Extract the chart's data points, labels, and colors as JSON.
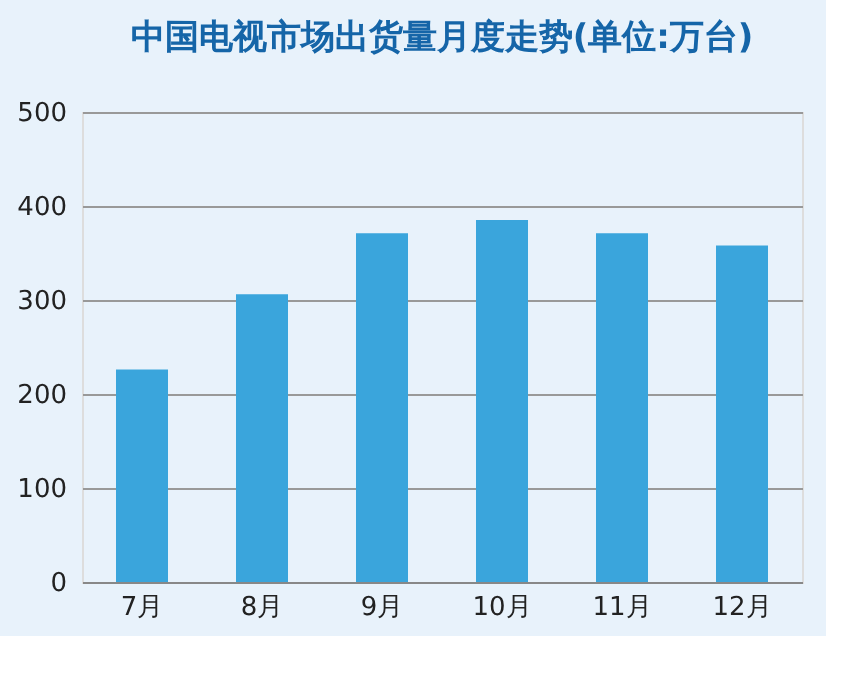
{
  "chart_data": {
    "type": "bar",
    "title": "中国电视市场出货量月度走势(单位:万台)",
    "categories": [
      "7月",
      "8月",
      "9月",
      "10月",
      "11月",
      "12月"
    ],
    "values": [
      226,
      306,
      371,
      385,
      371,
      358
    ],
    "color": "#3aa5dc",
    "ylim": [
      0,
      500
    ],
    "yticks": [
      0,
      100,
      200,
      300,
      400,
      500
    ],
    "grid": "y"
  }
}
